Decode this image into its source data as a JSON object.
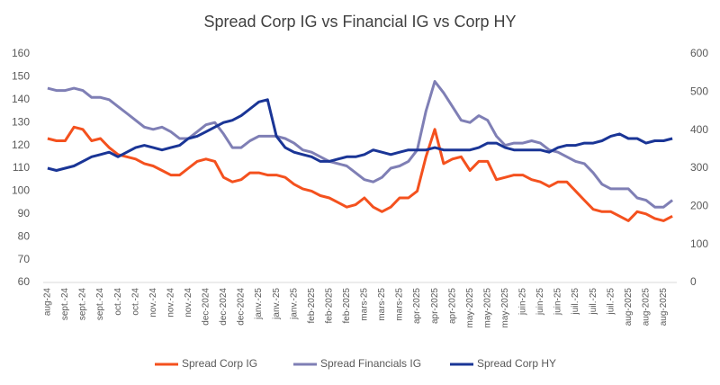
{
  "chart_data": {
    "type": "line",
    "title": "Spread Corp IG vs Financial IG vs Corp HY",
    "categories": [
      "aug-24",
      null,
      "sept.-24",
      null,
      "sept.-24",
      null,
      "sept.-24",
      null,
      "oct.-24",
      null,
      "oct.-24",
      null,
      "nov.-24",
      null,
      "nov.-24",
      null,
      "nov.-24",
      null,
      "dec-2024",
      null,
      "dec-2024",
      null,
      "dec-2024",
      null,
      "janv.-25",
      null,
      "janv.-25",
      null,
      "janv.-25",
      null,
      "feb-2025",
      null,
      "feb-2025",
      null,
      "feb-2025",
      null,
      "mars-25",
      null,
      "mars-25",
      null,
      "mars-25",
      null,
      "apr-2025",
      null,
      "apr-2025",
      null,
      "apr-2025",
      null,
      "may-2025",
      null,
      "may-2025",
      null,
      "may-2025",
      null,
      "juin-25",
      null,
      "juin-25",
      null,
      "juin-25",
      null,
      "juil.-25",
      null,
      "juil.-25",
      null,
      "juil.-25",
      null,
      "aug-2025",
      null,
      "aug-2025",
      null,
      "aug-2025",
      null
    ],
    "series": [
      {
        "name": "Spread Corp IG",
        "color": "#f4511e",
        "axis": "y",
        "values": [
          123,
          122,
          122,
          128,
          127,
          122,
          123,
          119,
          116,
          115,
          114,
          112,
          111,
          109,
          107,
          107,
          110,
          113,
          114,
          113,
          106,
          104,
          105,
          108,
          108,
          107,
          107,
          106,
          103,
          101,
          100,
          98,
          97,
          95,
          93,
          94,
          97,
          93,
          91,
          93,
          97,
          97,
          100,
          115,
          127,
          112,
          114,
          115,
          109,
          113,
          113,
          105,
          106,
          107,
          107,
          105,
          104,
          102,
          104,
          104,
          100,
          96,
          92,
          91,
          91,
          89,
          87,
          91,
          90,
          88,
          87,
          89
        ]
      },
      {
        "name": "Spread Financials IG",
        "color": "#7f7fb5",
        "axis": "y",
        "values": [
          145,
          144,
          144,
          145,
          144,
          141,
          141,
          140,
          137,
          134,
          131,
          128,
          127,
          128,
          126,
          123,
          123,
          126,
          129,
          130,
          125,
          119,
          119,
          122,
          124,
          124,
          124,
          123,
          121,
          118,
          117,
          115,
          113,
          112,
          111,
          108,
          105,
          104,
          106,
          110,
          111,
          113,
          118,
          135,
          148,
          143,
          137,
          131,
          130,
          133,
          131,
          124,
          120,
          121,
          121,
          122,
          121,
          118,
          117,
          115,
          113,
          112,
          108,
          103,
          101,
          101,
          101,
          97,
          96,
          93,
          93,
          96
        ]
      },
      {
        "name": "Spread Corp HY",
        "color": "#1a3596",
        "axis": "y2",
        "values": [
          300,
          294,
          300,
          306,
          318,
          330,
          336,
          342,
          330,
          342,
          354,
          360,
          354,
          348,
          354,
          360,
          378,
          384,
          396,
          408,
          420,
          426,
          438,
          456,
          474,
          480,
          384,
          354,
          342,
          336,
          330,
          318,
          318,
          324,
          330,
          330,
          336,
          348,
          342,
          336,
          342,
          348,
          348,
          348,
          354,
          348,
          348,
          348,
          348,
          354,
          366,
          366,
          354,
          348,
          348,
          348,
          348,
          342,
          354,
          360,
          360,
          366,
          366,
          372,
          384,
          390,
          378,
          378,
          366,
          372,
          372,
          378
        ]
      }
    ],
    "ylim": [
      60,
      160
    ],
    "yticks": [
      60,
      70,
      80,
      90,
      100,
      110,
      120,
      130,
      140,
      150,
      160
    ],
    "y2lim": [
      0,
      600
    ],
    "y2ticks": [
      0,
      100,
      200,
      300,
      400,
      500,
      600
    ],
    "grid": false,
    "legend": "bottom"
  }
}
